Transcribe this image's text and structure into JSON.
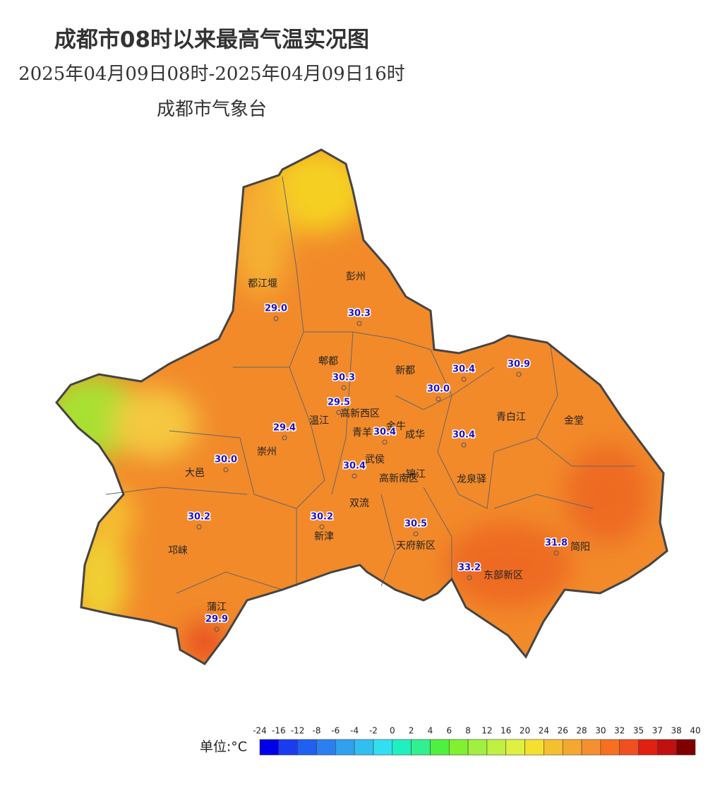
{
  "header": {
    "title": "成都市08时以来最高气温实况图",
    "period": "2025年04月09日08时-2025年04月09日16时",
    "source": "成都市气象台"
  },
  "districts": [
    "都江堰",
    "彭州",
    "郫都",
    "新都",
    "高新西区",
    "温江",
    "青羊",
    "金牛",
    "成华",
    "青白江",
    "金堂",
    "崇州",
    "武侯",
    "大邑",
    "锦江",
    "高新南区",
    "龙泉驿",
    "双流",
    "新津",
    "天府新区",
    "邛崃",
    "简阳",
    "东部新区",
    "蒲江"
  ],
  "stations": {
    "values": [
      29.0,
      30.3,
      30.3,
      29.5,
      30.4,
      30.9,
      30.0,
      29.4,
      30.4,
      30.0,
      30.4,
      30.4,
      30.2,
      30.2,
      30.5,
      31.8,
      33.2,
      29.9
    ],
    "value_labels": [
      "29.0",
      "30.3",
      "30.3",
      "29.5",
      "30.4",
      "30.9",
      "30.0",
      "29.4",
      "30.4",
      "30.0",
      "30.4",
      "30.4",
      "30.2",
      "30.2",
      "30.5",
      "31.8",
      "33.2",
      "29.9"
    ]
  },
  "legend": {
    "unit": "单位:°C",
    "ticks": [
      -24,
      -16,
      -12,
      -8,
      -6,
      -4,
      -2,
      0,
      2,
      4,
      6,
      8,
      12,
      16,
      20,
      24,
      26,
      28,
      30,
      32,
      35,
      37,
      38,
      40
    ],
    "colors": [
      "#0000e6",
      "#1a3cf0",
      "#2060f0",
      "#2a80f0",
      "#30a0f0",
      "#30c0f0",
      "#30e0f0",
      "#20f0c0",
      "#30f090",
      "#50f040",
      "#80f030",
      "#a0f040",
      "#c0f040",
      "#e0f040",
      "#f5e030",
      "#f5c030",
      "#f5a830",
      "#f59030",
      "#f57020",
      "#f05020",
      "#e02010",
      "#c01010",
      "#800000"
    ]
  }
}
